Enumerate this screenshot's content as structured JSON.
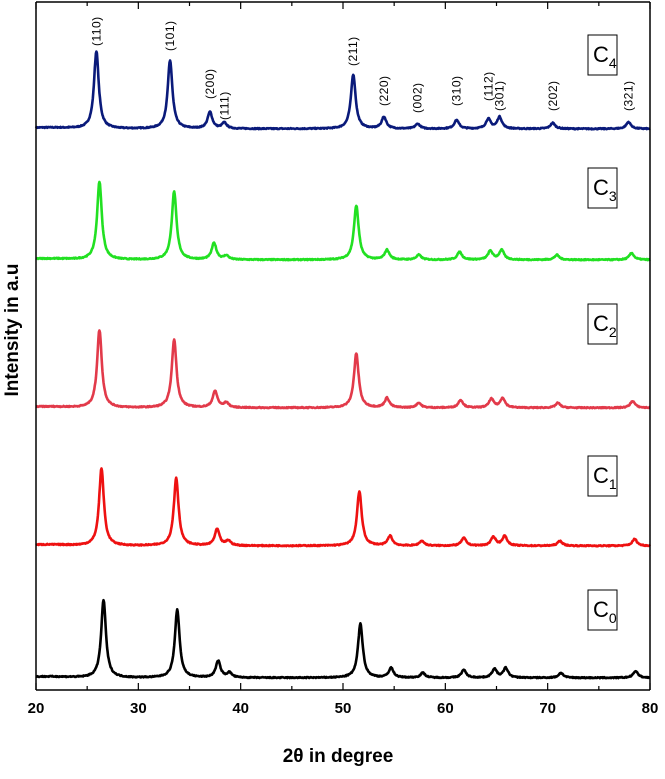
{
  "chart_data": {
    "type": "line",
    "xlabel": "2θ in degree",
    "ylabel": "Intensity in a.u",
    "xlim": [
      20,
      80
    ],
    "x_ticks": [
      20,
      30,
      40,
      50,
      60,
      70,
      80
    ],
    "grid": false,
    "legend": "none",
    "peak_labels": [
      {
        "label": "(110)",
        "x": 25.9
      },
      {
        "label": "(101)",
        "x": 33.1
      },
      {
        "label": "(200)",
        "x": 37.0
      },
      {
        "label": "(111)",
        "x": 38.4
      },
      {
        "label": "(211)",
        "x": 51.0
      },
      {
        "label": "(220)",
        "x": 54.0
      },
      {
        "label": "(002)",
        "x": 57.3
      },
      {
        "label": "(310)",
        "x": 61.1
      },
      {
        "label": "(112)",
        "x": 64.2
      },
      {
        "label": "(301)",
        "x": 65.3
      },
      {
        "label": "(202)",
        "x": 70.5
      },
      {
        "label": "(321)",
        "x": 77.9
      }
    ],
    "series": [
      {
        "name": "C4",
        "color": "#0a1a7a",
        "peaks": [
          [
            25.9,
            80
          ],
          [
            33.1,
            70
          ],
          [
            37.0,
            17
          ],
          [
            38.4,
            6
          ],
          [
            51.0,
            56
          ],
          [
            54.0,
            12
          ],
          [
            57.3,
            5
          ],
          [
            61.1,
            9
          ],
          [
            64.2,
            10
          ],
          [
            65.3,
            12
          ],
          [
            70.5,
            6
          ],
          [
            77.9,
            7
          ]
        ]
      },
      {
        "name": "C3",
        "color": "#22e022",
        "peaks": [
          [
            26.2,
            80
          ],
          [
            33.5,
            70
          ],
          [
            37.4,
            17
          ],
          [
            38.6,
            4
          ],
          [
            51.3,
            56
          ],
          [
            54.3,
            10
          ],
          [
            57.4,
            5
          ],
          [
            61.4,
            8
          ],
          [
            64.4,
            9
          ],
          [
            65.5,
            10
          ],
          [
            70.9,
            5
          ],
          [
            78.2,
            7
          ]
        ]
      },
      {
        "name": "C2",
        "color": "#e23a4a",
        "peaks": [
          [
            26.2,
            80
          ],
          [
            33.5,
            70
          ],
          [
            37.5,
            17
          ],
          [
            38.6,
            5
          ],
          [
            51.3,
            56
          ],
          [
            54.3,
            10
          ],
          [
            57.4,
            5
          ],
          [
            61.5,
            8
          ],
          [
            64.5,
            9
          ],
          [
            65.6,
            10
          ],
          [
            71.0,
            5
          ],
          [
            78.3,
            7
          ]
        ]
      },
      {
        "name": "C1",
        "color": "#ee1111",
        "peaks": [
          [
            26.4,
            80
          ],
          [
            33.7,
            70
          ],
          [
            37.7,
            17
          ],
          [
            38.8,
            5
          ],
          [
            51.6,
            56
          ],
          [
            54.6,
            10
          ],
          [
            57.7,
            5
          ],
          [
            61.8,
            8
          ],
          [
            64.7,
            9
          ],
          [
            65.8,
            10
          ],
          [
            71.2,
            5
          ],
          [
            78.5,
            7
          ]
        ]
      },
      {
        "name": "C0",
        "color": "#000000",
        "peaks": [
          [
            26.6,
            80
          ],
          [
            33.8,
            70
          ],
          [
            37.8,
            17
          ],
          [
            38.9,
            5
          ],
          [
            51.7,
            56
          ],
          [
            54.7,
            10
          ],
          [
            57.8,
            5
          ],
          [
            61.8,
            8
          ],
          [
            64.8,
            9
          ],
          [
            65.9,
            10
          ],
          [
            71.3,
            5
          ],
          [
            78.6,
            7
          ]
        ]
      }
    ]
  }
}
